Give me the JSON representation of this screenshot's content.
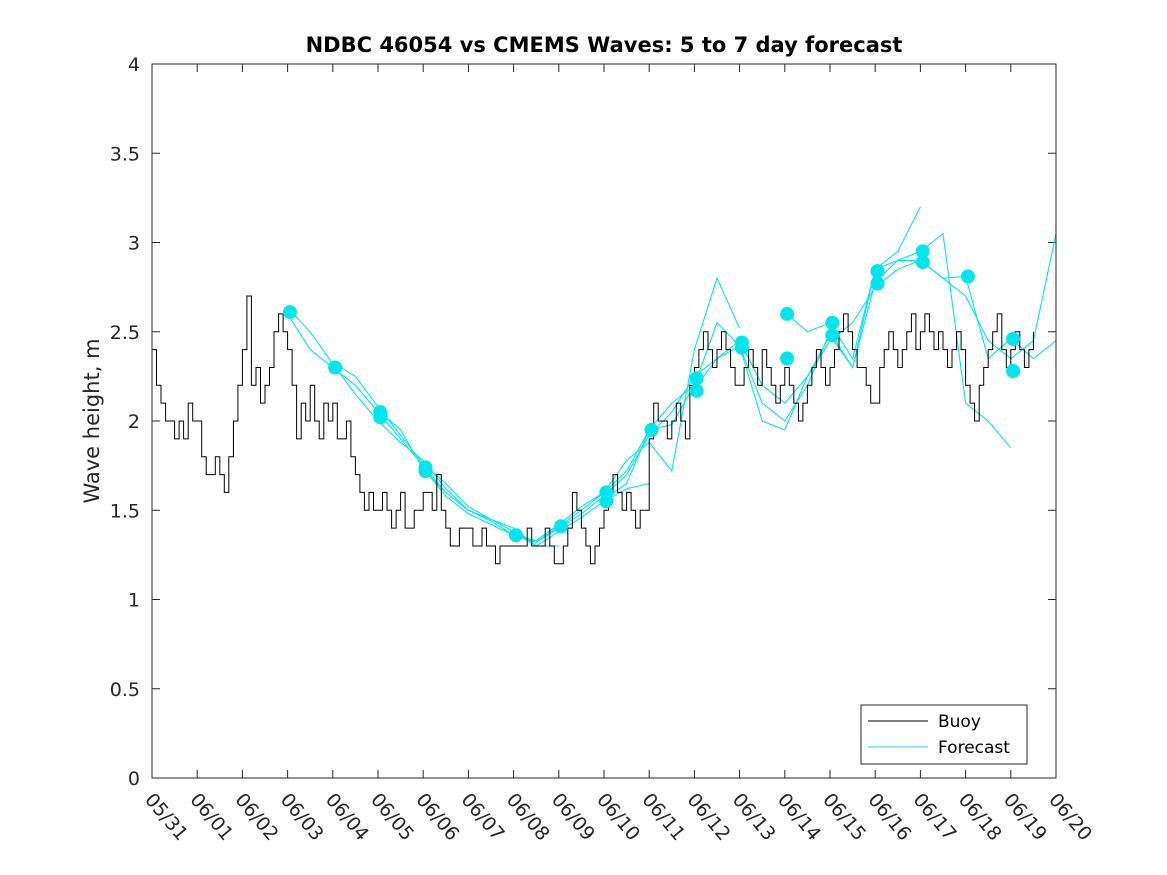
{
  "chart_data": {
    "type": "line",
    "title": "NDBC 46054 vs CMEMS Waves: 5 to 7 day forecast",
    "xlabel": "",
    "ylabel": "Wave height, m",
    "xlim": [
      0,
      20
    ],
    "ylim": [
      0,
      4
    ],
    "x_unit": "days since 05/31",
    "x_ticks": [
      {
        "value": 0,
        "label": "05/31"
      },
      {
        "value": 1,
        "label": "06/01"
      },
      {
        "value": 2,
        "label": "06/02"
      },
      {
        "value": 3,
        "label": "06/03"
      },
      {
        "value": 4,
        "label": "06/04"
      },
      {
        "value": 5,
        "label": "06/05"
      },
      {
        "value": 6,
        "label": "06/06"
      },
      {
        "value": 7,
        "label": "06/07"
      },
      {
        "value": 8,
        "label": "06/08"
      },
      {
        "value": 9,
        "label": "06/09"
      },
      {
        "value": 10,
        "label": "06/10"
      },
      {
        "value": 11,
        "label": "06/11"
      },
      {
        "value": 12,
        "label": "06/12"
      },
      {
        "value": 13,
        "label": "06/13"
      },
      {
        "value": 14,
        "label": "06/14"
      },
      {
        "value": 15,
        "label": "06/15"
      },
      {
        "value": 16,
        "label": "06/16"
      },
      {
        "value": 17,
        "label": "06/17"
      },
      {
        "value": 18,
        "label": "06/18"
      },
      {
        "value": 19,
        "label": "06/19"
      },
      {
        "value": 20,
        "label": "06/20"
      }
    ],
    "y_ticks": [
      {
        "value": 0,
        "label": "0"
      },
      {
        "value": 0.5,
        "label": "0.5"
      },
      {
        "value": 1,
        "label": "1"
      },
      {
        "value": 1.5,
        "label": "1.5"
      },
      {
        "value": 2,
        "label": "2"
      },
      {
        "value": 2.5,
        "label": "2.5"
      },
      {
        "value": 3,
        "label": "3"
      },
      {
        "value": 3.5,
        "label": "3.5"
      },
      {
        "value": 4,
        "label": "4"
      }
    ],
    "grid": false,
    "legend_position": "bottom-right",
    "series": [
      {
        "name": "Buoy",
        "color": "#000000",
        "x": [
          0,
          0.1,
          0.2,
          0.3,
          0.4,
          0.5,
          0.6,
          0.7,
          0.8,
          0.9,
          1.0,
          1.1,
          1.2,
          1.3,
          1.4,
          1.5,
          1.6,
          1.7,
          1.8,
          1.9,
          2.0,
          2.1,
          2.2,
          2.3,
          2.4,
          2.5,
          2.6,
          2.7,
          2.8,
          2.9,
          3.0,
          3.1,
          3.2,
          3.3,
          3.4,
          3.5,
          3.6,
          3.7,
          3.8,
          3.9,
          4.0,
          4.1,
          4.2,
          4.3,
          4.4,
          4.5,
          4.6,
          4.7,
          4.8,
          4.9,
          5.0,
          5.1,
          5.2,
          5.3,
          5.4,
          5.5,
          5.6,
          5.7,
          5.8,
          5.9,
          6.0,
          6.1,
          6.2,
          6.3,
          6.4,
          6.5,
          6.6,
          6.7,
          6.8,
          6.9,
          7.0,
          7.1,
          7.2,
          7.3,
          7.4,
          7.5,
          7.6,
          7.7,
          7.8,
          7.9,
          8.0,
          8.1,
          8.2,
          8.3,
          8.4,
          8.5,
          8.6,
          8.7,
          8.8,
          8.9,
          9.0,
          9.1,
          9.2,
          9.3,
          9.4,
          9.5,
          9.6,
          9.7,
          9.8,
          9.9,
          10.0,
          10.1,
          10.2,
          10.3,
          10.4,
          10.5,
          10.6,
          10.7,
          10.8,
          10.9,
          11.0,
          11.1,
          11.2,
          11.3,
          11.4,
          11.5,
          11.6,
          11.7,
          11.8,
          11.9,
          12.0,
          12.1,
          12.2,
          12.3,
          12.4,
          12.5,
          12.6,
          12.7,
          12.8,
          12.9,
          13.0,
          13.1,
          13.2,
          13.3,
          13.4,
          13.5,
          13.6,
          13.7,
          13.8,
          13.9,
          14.0,
          14.1,
          14.2,
          14.3,
          14.4,
          14.5,
          14.6,
          14.7,
          14.8,
          14.9,
          15.0,
          15.1,
          15.2,
          15.3,
          15.4,
          15.5,
          15.6,
          15.7,
          15.8,
          15.9,
          16.0,
          16.1,
          16.2,
          16.3,
          16.4,
          16.5,
          16.6,
          16.7,
          16.8,
          16.9,
          17.0,
          17.1,
          17.2,
          17.3,
          17.4,
          17.5,
          17.6,
          17.7,
          17.8,
          17.9,
          18.0,
          18.1,
          18.2,
          18.3,
          18.4,
          18.5,
          18.6,
          18.7,
          18.8,
          18.9,
          19.0,
          19.1,
          19.2,
          19.3,
          19.4,
          19.5
        ],
        "values": [
          2.4,
          2.2,
          2.1,
          2.0,
          2.0,
          1.9,
          2.0,
          1.9,
          2.1,
          2.0,
          2.0,
          1.8,
          1.7,
          1.7,
          1.8,
          1.7,
          1.6,
          1.8,
          2.0,
          2.2,
          2.4,
          2.7,
          2.2,
          2.3,
          2.1,
          2.2,
          2.3,
          2.5,
          2.6,
          2.5,
          2.4,
          2.2,
          1.9,
          2.1,
          2.0,
          2.2,
          2.0,
          1.9,
          2.1,
          2.0,
          2.1,
          1.9,
          1.9,
          2.0,
          1.8,
          1.7,
          1.6,
          1.5,
          1.6,
          1.5,
          1.5,
          1.6,
          1.5,
          1.4,
          1.5,
          1.6,
          1.4,
          1.4,
          1.5,
          1.5,
          1.6,
          1.6,
          1.5,
          1.7,
          1.5,
          1.4,
          1.3,
          1.3,
          1.4,
          1.4,
          1.4,
          1.3,
          1.3,
          1.4,
          1.3,
          1.3,
          1.2,
          1.3,
          1.3,
          1.3,
          1.3,
          1.3,
          1.3,
          1.4,
          1.3,
          1.3,
          1.3,
          1.4,
          1.3,
          1.2,
          1.2,
          1.3,
          1.4,
          1.6,
          1.5,
          1.4,
          1.3,
          1.2,
          1.3,
          1.4,
          1.5,
          1.6,
          1.7,
          1.6,
          1.5,
          1.6,
          1.5,
          1.4,
          1.5,
          1.5,
          1.9,
          2.1,
          2.0,
          2.0,
          1.9,
          2.0,
          2.1,
          2.0,
          1.9,
          2.2,
          2.3,
          2.4,
          2.5,
          2.4,
          2.3,
          2.4,
          2.5,
          2.4,
          2.3,
          2.2,
          2.2,
          2.3,
          2.4,
          2.3,
          2.2,
          2.4,
          2.3,
          2.2,
          2.1,
          2.2,
          2.3,
          2.2,
          2.1,
          2.0,
          2.1,
          2.2,
          2.3,
          2.4,
          2.3,
          2.2,
          2.3,
          2.4,
          2.5,
          2.6,
          2.5,
          2.4,
          2.3,
          2.3,
          2.2,
          2.1,
          2.1,
          2.3,
          2.4,
          2.5,
          2.4,
          2.3,
          2.4,
          2.5,
          2.6,
          2.4,
          2.5,
          2.6,
          2.5,
          2.4,
          2.5,
          2.4,
          2.3,
          2.4,
          2.5,
          2.4,
          2.2,
          2.1,
          2.0,
          2.2,
          2.3,
          2.4,
          2.5,
          2.6,
          2.4,
          2.3,
          2.4,
          2.5,
          2.4,
          2.3,
          2.4,
          2.5
        ]
      },
      {
        "name": "Forecast",
        "color": "#00e5ee",
        "x": [
          3.0,
          3.5,
          4.0,
          4.5,
          5.0,
          5.5,
          6.0,
          6.5,
          7.0,
          7.5,
          8.0,
          8.5,
          9.0,
          9.5,
          10.0,
          10.5,
          11.0,
          11.5,
          12.0,
          12.5,
          13.0,
          13.5,
          14.0,
          14.5,
          15.0,
          15.5,
          16.0,
          16.5,
          17.0,
          17.5,
          18.0,
          18.5,
          19.0,
          19.5,
          20.0
        ],
        "values": [
          2.6,
          2.4,
          2.3,
          2.2,
          2.05,
          1.9,
          1.75,
          1.6,
          1.5,
          1.45,
          1.38,
          1.32,
          1.4,
          1.48,
          1.58,
          1.7,
          1.92,
          2.05,
          2.25,
          2.35,
          2.45,
          2.2,
          2.1,
          2.25,
          2.45,
          2.55,
          2.75,
          2.85,
          2.9,
          2.8,
          2.7,
          2.45,
          2.35,
          2.45,
          3.05
        ],
        "markers": [
          {
            "x": 3.05,
            "y": 2.61
          },
          {
            "x": 4.05,
            "y": 2.3
          },
          {
            "x": 5.05,
            "y": 2.02
          },
          {
            "x": 5.05,
            "y": 2.05
          },
          {
            "x": 6.05,
            "y": 1.72
          },
          {
            "x": 6.05,
            "y": 1.74
          },
          {
            "x": 8.05,
            "y": 1.36
          },
          {
            "x": 9.05,
            "y": 1.41
          },
          {
            "x": 10.05,
            "y": 1.55
          },
          {
            "x": 10.05,
            "y": 1.6
          },
          {
            "x": 11.05,
            "y": 1.95
          },
          {
            "x": 12.05,
            "y": 2.17
          },
          {
            "x": 12.05,
            "y": 2.24
          },
          {
            "x": 13.05,
            "y": 2.41
          },
          {
            "x": 13.05,
            "y": 2.44
          },
          {
            "x": 14.05,
            "y": 2.35
          },
          {
            "x": 14.05,
            "y": 2.6
          },
          {
            "x": 15.05,
            "y": 2.48
          },
          {
            "x": 15.05,
            "y": 2.55
          },
          {
            "x": 16.05,
            "y": 2.77
          },
          {
            "x": 16.05,
            "y": 2.84
          },
          {
            "x": 17.05,
            "y": 2.89
          },
          {
            "x": 17.05,
            "y": 2.95
          },
          {
            "x": 18.05,
            "y": 2.81
          },
          {
            "x": 19.05,
            "y": 2.28
          },
          {
            "x": 19.05,
            "y": 2.46
          }
        ]
      }
    ],
    "forecast_ensemble": [
      {
        "x": [
          3.05,
          3.5,
          4.0,
          4.5,
          5.0,
          5.5,
          6.0,
          6.5,
          7.0,
          7.5,
          8.0,
          8.5,
          9.0
        ],
        "values": [
          2.62,
          2.5,
          2.32,
          2.15,
          2.0,
          1.88,
          1.78,
          1.62,
          1.5,
          1.45,
          1.4,
          1.3,
          1.3
        ]
      },
      {
        "x": [
          4.05,
          4.5,
          5.0,
          5.5,
          6.0,
          6.5,
          7.0,
          7.5,
          8.0,
          8.5,
          9.0,
          9.5,
          10.0,
          10.5,
          11.0
        ],
        "values": [
          2.32,
          2.25,
          2.08,
          1.92,
          1.76,
          1.65,
          1.52,
          1.45,
          1.38,
          1.3,
          1.38,
          1.46,
          1.55,
          1.62,
          1.65
        ]
      },
      {
        "x": [
          5.05,
          5.5,
          6.0,
          6.5,
          7.0,
          7.5,
          8.0,
          8.5,
          9.0,
          9.5,
          10.0,
          10.5,
          11.0,
          11.5,
          12.0
        ],
        "values": [
          2.05,
          1.95,
          1.73,
          1.6,
          1.5,
          1.44,
          1.36,
          1.32,
          1.41,
          1.5,
          1.6,
          1.72,
          1.95,
          1.98,
          2.2
        ]
      },
      {
        "x": [
          6.05,
          6.5,
          7.0,
          7.5,
          8.0,
          8.5,
          9.0,
          9.5,
          10.0,
          10.5,
          11.0,
          11.5,
          12.0,
          12.5,
          13.0
        ],
        "values": [
          1.72,
          1.58,
          1.48,
          1.42,
          1.36,
          1.33,
          1.42,
          1.52,
          1.6,
          1.78,
          1.88,
          1.72,
          2.4,
          2.8,
          2.52
        ]
      },
      {
        "x": [
          10.05,
          10.5,
          11.0,
          11.5,
          12.0,
          12.5,
          13.0,
          13.5,
          14.0,
          14.5,
          15.0,
          15.5,
          16.0,
          16.5,
          17.0
        ],
        "values": [
          1.57,
          1.65,
          1.95,
          2.1,
          2.2,
          2.55,
          2.42,
          2.1,
          2.0,
          2.2,
          2.5,
          2.3,
          2.85,
          2.95,
          3.2
        ]
      },
      {
        "x": [
          12.05,
          12.5,
          13.0,
          13.5,
          14.0,
          14.5,
          15.0,
          15.5,
          16.0,
          16.5,
          17.0,
          17.5,
          18.0,
          18.5,
          19.0
        ],
        "values": [
          2.2,
          2.35,
          2.42,
          2.0,
          1.95,
          2.25,
          2.48,
          2.3,
          2.78,
          2.9,
          2.95,
          3.05,
          2.1,
          2.0,
          1.85
        ]
      },
      {
        "x": [
          14.05,
          14.5,
          15.0,
          15.5,
          16.0,
          16.5,
          17.0,
          17.5,
          18.0,
          18.5,
          19.0,
          19.5,
          20.0
        ],
        "values": [
          2.6,
          2.5,
          2.55,
          2.35,
          2.85,
          2.9,
          2.9,
          2.8,
          2.81,
          2.35,
          2.46,
          2.35,
          2.45
        ]
      }
    ]
  }
}
